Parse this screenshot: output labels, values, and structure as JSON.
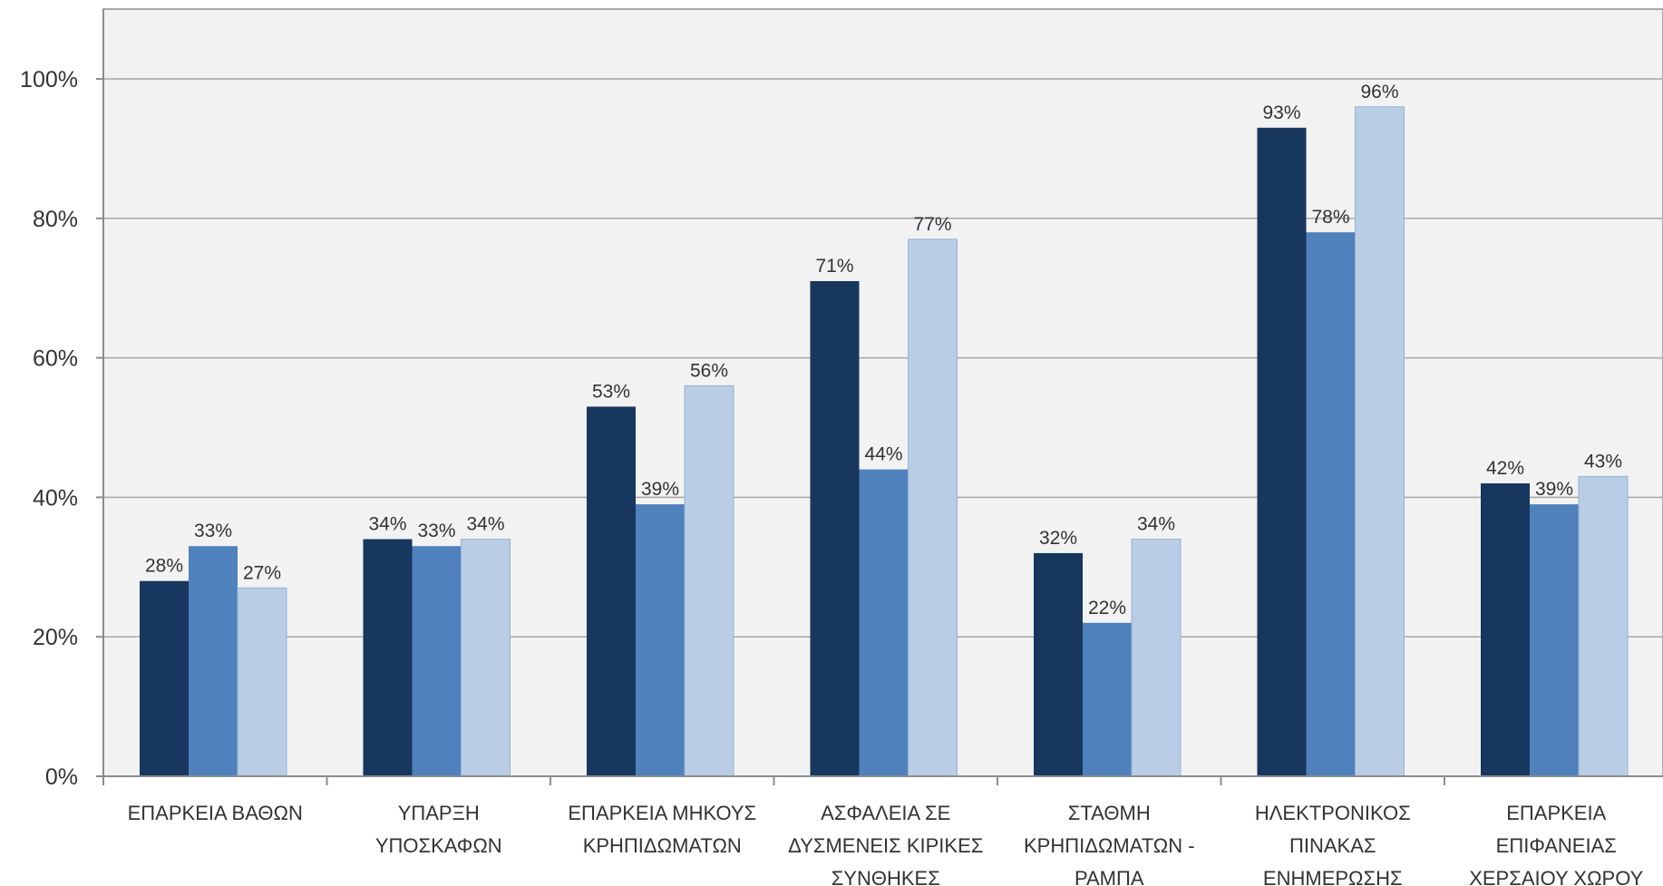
{
  "chart_data": {
    "type": "bar",
    "categories": [
      [
        "ΕΠΑΡΚΕΙΑ ΒΑΘΩΝ"
      ],
      [
        "ΥΠΑΡΞΗ",
        "ΥΠΟΣΚΑΦΩΝ"
      ],
      [
        "ΕΠΑΡΚΕΙΑ ΜΗΚΟΥΣ",
        "ΚΡΗΠΙΔΩΜΑΤΩΝ"
      ],
      [
        "ΑΣΦΑΛΕΙΑ ΣΕ",
        "ΔΥΣΜΕΝΕΙΣ ΚΙΡΙΚΕΣ",
        "ΣΥΝΘΗΚΕΣ"
      ],
      [
        "ΣΤΑΘΜΗ",
        "ΚΡΗΠΙΔΩΜΑΤΩΝ -",
        "ΡΑΜΠΑ"
      ],
      [
        "ΗΛΕΚΤΡΟΝΙΚΟΣ",
        "ΠΙΝΑΚΑΣ",
        "ΕΝΗΜΕΡΩΣΗΣ"
      ],
      [
        "ΕΠΑΡΚΕΙΑ",
        "ΕΠΙΦΑΝΕΙΑΣ",
        "ΧΕΡΣΑΙΟΥ ΧΩΡΟΥ"
      ]
    ],
    "series": [
      {
        "values": [
          28,
          34,
          53,
          71,
          32,
          93,
          42
        ],
        "labels": [
          "28%",
          "34%",
          "53%",
          "71%",
          "32%",
          "93%",
          "42%"
        ],
        "color": "#17375e"
      },
      {
        "values": [
          33,
          33,
          39,
          44,
          22,
          78,
          39
        ],
        "labels": [
          "33%",
          "33%",
          "39%",
          "44%",
          "22%",
          "78%",
          "39%"
        ],
        "color": "#4f81bd"
      },
      {
        "values": [
          27,
          34,
          56,
          77,
          34,
          96,
          43
        ],
        "labels": [
          "27%",
          "34%",
          "56%",
          "77%",
          "34%",
          "96%",
          "43%"
        ],
        "color": "#b9cde5"
      }
    ],
    "y_ticks": [
      "0%",
      "20%",
      "40%",
      "60%",
      "80%",
      "100%"
    ],
    "ylim": [
      0,
      110
    ],
    "grid": true,
    "background_color": "#f2f2f2",
    "gridline_color": "#a6a6a6"
  }
}
